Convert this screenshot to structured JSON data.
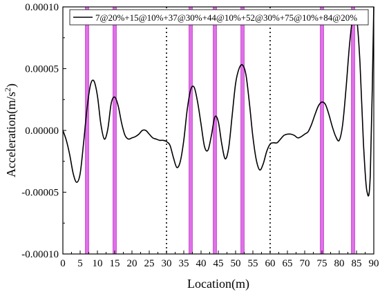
{
  "chart_data": {
    "type": "line",
    "xlabel": "Location(m)",
    "ylabel": "Acceleration(m/s²)",
    "xlim": [
      0,
      90
    ],
    "ylim": [
      -0.0001,
      0.0001
    ],
    "x_ticks": [
      0,
      5,
      10,
      15,
      20,
      25,
      30,
      35,
      40,
      45,
      50,
      55,
      60,
      65,
      70,
      75,
      80,
      85,
      90
    ],
    "y_ticks": [
      {
        "value": 0.0001,
        "label": "0.00010"
      },
      {
        "value": 5e-05,
        "label": "0.00005"
      },
      {
        "value": 0,
        "label": "0.00000"
      },
      {
        "value": -5e-05,
        "label": "-0.00005"
      },
      {
        "value": -0.0001,
        "label": "-0.00010"
      }
    ],
    "grid": false,
    "legend_position": "top-right",
    "series": [
      {
        "name": "7@20%+15@10%+37@30%+44@10%+52@30%+75@10%+84@20%",
        "color": "#000000",
        "x": [
          0,
          1,
          2,
          3,
          4,
          5,
          6,
          7,
          8,
          9,
          10,
          11,
          12,
          13,
          14,
          15,
          16,
          17,
          18,
          19,
          20,
          21,
          22,
          23,
          24,
          25,
          26,
          27,
          28,
          29,
          30,
          31,
          32,
          33,
          34,
          35,
          36,
          37,
          38,
          39,
          40,
          41,
          42,
          43,
          44,
          45,
          46,
          47,
          48,
          49,
          50,
          51,
          52,
          53,
          54,
          55,
          56,
          57,
          58,
          59,
          60,
          61,
          62,
          63,
          64,
          65,
          66,
          67,
          68,
          69,
          70,
          71,
          72,
          73,
          74,
          75,
          76,
          77,
          78,
          79,
          80,
          81,
          82,
          83,
          84,
          85,
          86,
          87,
          88,
          89,
          90
        ],
        "values": [
          0,
          -8e-06,
          -2e-05,
          -3.5e-05,
          -4.2e-05,
          -3.5e-05,
          -1e-05,
          1.8e-05,
          3.7e-05,
          4e-05,
          2.8e-05,
          5e-06,
          -7e-06,
          1e-06,
          2.2e-05,
          2.7e-05,
          2e-05,
          6e-06,
          -4e-06,
          -7e-06,
          -6e-06,
          -5e-06,
          -3e-06,
          0,
          0,
          -3e-06,
          -6e-06,
          -7e-06,
          -8e-06,
          -8e-06,
          -9e-06,
          -1.2e-05,
          -2.2e-05,
          -3e-05,
          -2.5e-05,
          -8e-06,
          1.7e-05,
          3.3e-05,
          3.5e-05,
          2.3e-05,
          5e-06,
          -1.3e-05,
          -1.6e-05,
          -4e-06,
          1.1e-05,
          7e-06,
          -1.1e-05,
          -2.3e-05,
          -1.4e-05,
          1.2e-05,
          3.8e-05,
          5e-05,
          5.3e-05,
          4.5e-05,
          2.2e-05,
          -5e-06,
          -2.4e-05,
          -3.2e-05,
          -2.7e-05,
          -1.7e-05,
          -1.1e-05,
          -1e-05,
          -1e-05,
          -7e-06,
          -4e-06,
          -3e-06,
          -3e-06,
          -4e-06,
          -6e-06,
          -5e-06,
          -3e-06,
          -1e-06,
          5e-06,
          1.3e-05,
          2e-05,
          2.3e-05,
          2.1e-05,
          1.3e-05,
          3e-06,
          -5e-06,
          -8e-06,
          5e-06,
          3.5e-05,
          7e-05,
          9.3e-05,
          9.2e-05,
          5.5e-05,
          -1e-05,
          -4.9e-05,
          -3.5e-05,
          0.0001
        ]
      }
    ],
    "damage_bands": [
      {
        "x0": 6.5,
        "x1": 7.5
      },
      {
        "x0": 14.5,
        "x1": 15.5
      },
      {
        "x0": 36.5,
        "x1": 37.5
      },
      {
        "x0": 43.5,
        "x1": 44.5
      },
      {
        "x0": 51.5,
        "x1": 52.5
      },
      {
        "x0": 74.5,
        "x1": 75.5
      },
      {
        "x0": 83.5,
        "x1": 84.5
      }
    ],
    "vlines_dotted": [
      30,
      60
    ],
    "colors": {
      "band": "#e070e8",
      "band_edge": "#c040c8",
      "line": "#000000",
      "dotted": "#000000"
    }
  }
}
